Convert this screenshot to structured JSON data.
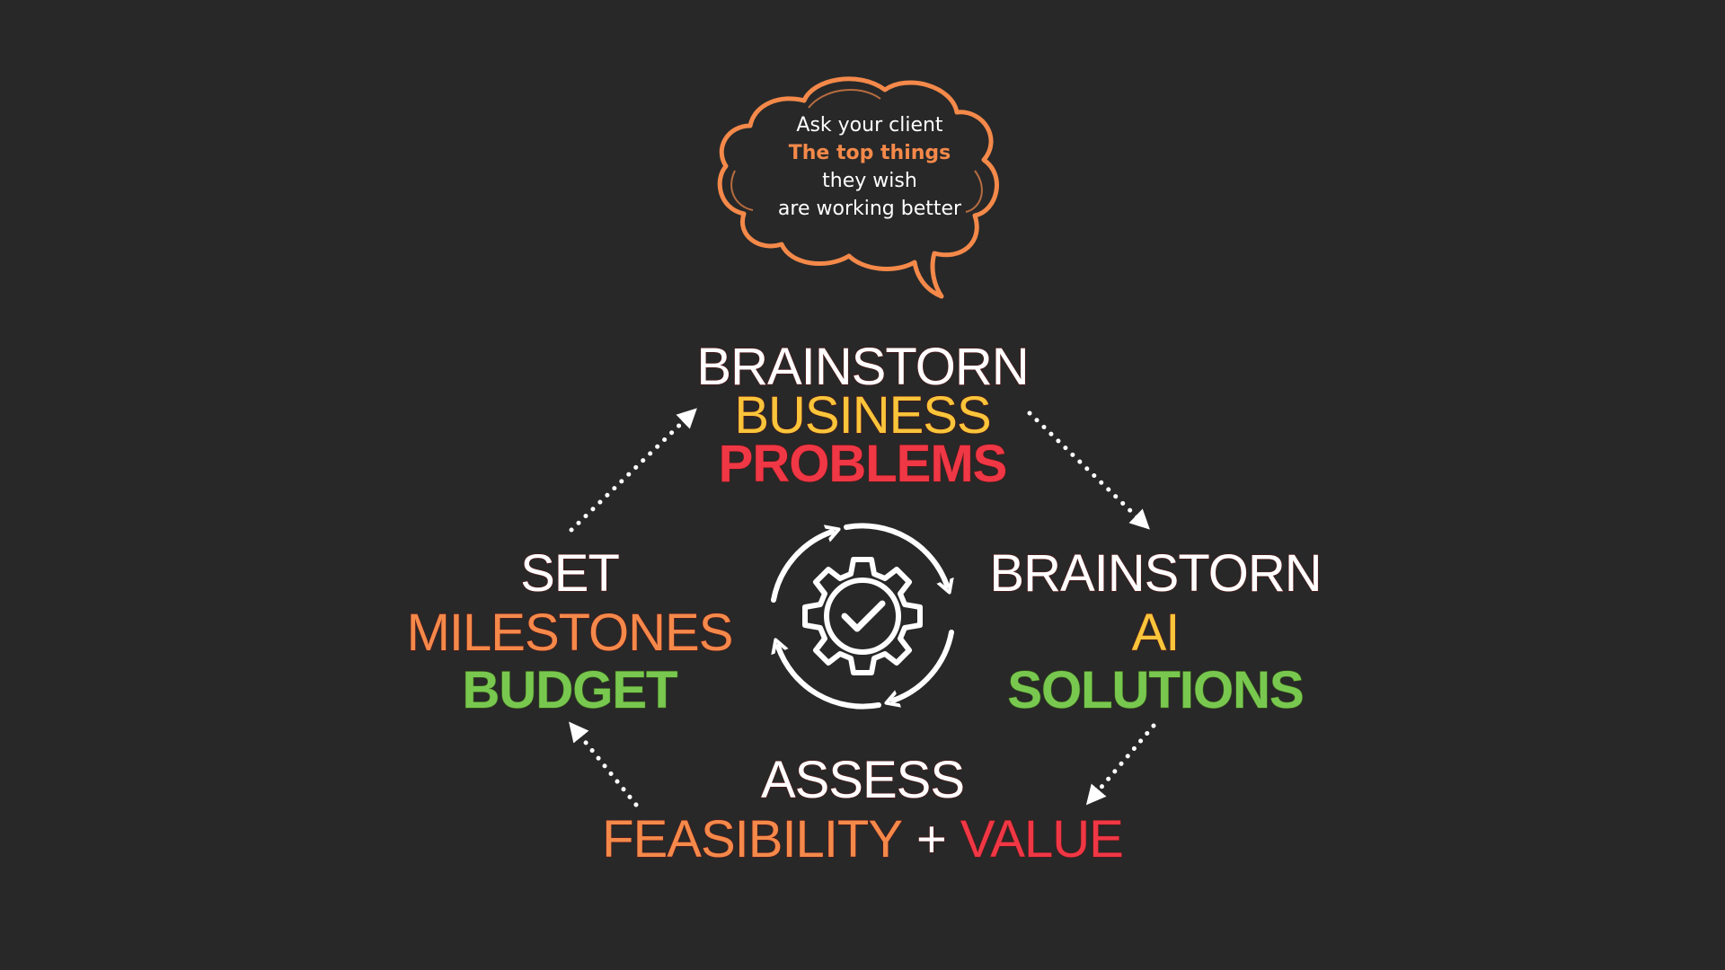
{
  "colors": {
    "background": "#282828",
    "white": "#ffffff",
    "yellow": "#f9c53a",
    "red": "#f03745",
    "orange": "#f4894a",
    "green": "#78c850"
  },
  "thought_bubble": {
    "line1": "Ask your client",
    "line2": "The top things",
    "line3": "they wish",
    "line4": "are working better"
  },
  "top_node": {
    "line1": "BRAINSTORN",
    "line2": "BUSINESS",
    "line3": "PROBLEMS"
  },
  "right_node": {
    "line1": "BRAINSTORN",
    "line2": "AI",
    "line3": "SOLUTIONS"
  },
  "bottom_node": {
    "line1": "ASSESS",
    "part_a": "FEASIBILITY",
    "plus": "+",
    "part_b": "VALUE"
  },
  "left_node": {
    "line1": "SET",
    "line2": "MILESTONES",
    "line3": "BUDGET"
  },
  "center_icon": "gear-check-cycle-icon",
  "connectors": [
    "arrow-top-to-right",
    "arrow-right-to-bottom",
    "arrow-bottom-to-left",
    "arrow-left-to-top"
  ]
}
